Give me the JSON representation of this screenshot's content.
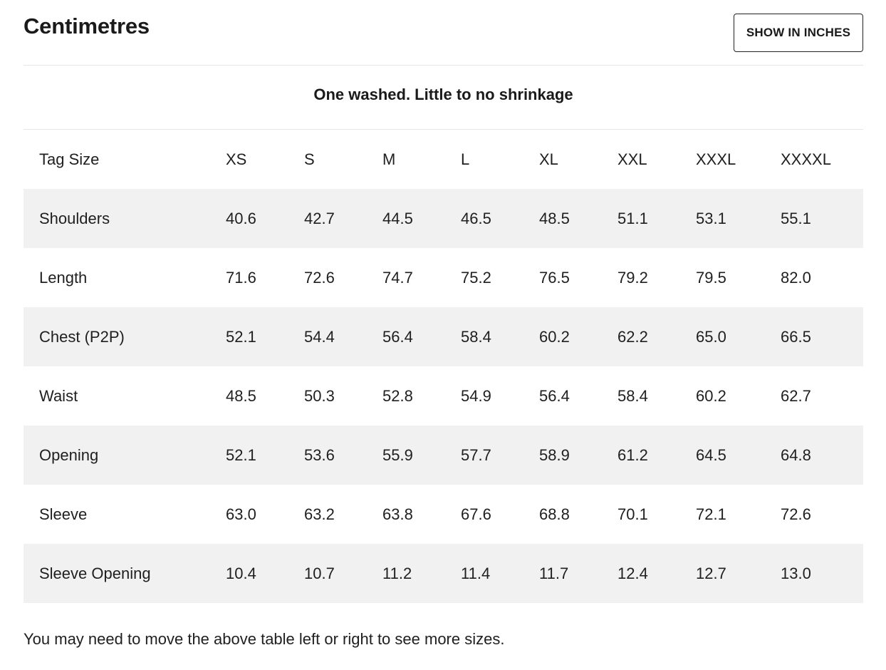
{
  "header": {
    "title": "Centimetres",
    "toggle_label": "SHOW IN INCHES"
  },
  "caption": "One washed. Little to no shrinkage",
  "table": {
    "columns": [
      "Tag Size",
      "XS",
      "S",
      "M",
      "L",
      "XL",
      "XXL",
      "XXXL",
      "XXXXL"
    ],
    "rows": [
      {
        "label": "Shoulders",
        "values": [
          "40.6",
          "42.7",
          "44.5",
          "46.5",
          "48.5",
          "51.1",
          "53.1",
          "55.1"
        ]
      },
      {
        "label": "Length",
        "values": [
          "71.6",
          "72.6",
          "74.7",
          "75.2",
          "76.5",
          "79.2",
          "79.5",
          "82.0"
        ]
      },
      {
        "label": "Chest (P2P)",
        "values": [
          "52.1",
          "54.4",
          "56.4",
          "58.4",
          "60.2",
          "62.2",
          "65.0",
          "66.5"
        ]
      },
      {
        "label": "Waist",
        "values": [
          "48.5",
          "50.3",
          "52.8",
          "54.9",
          "56.4",
          "58.4",
          "60.2",
          "62.7"
        ]
      },
      {
        "label": "Opening",
        "values": [
          "52.1",
          "53.6",
          "55.9",
          "57.7",
          "58.9",
          "61.2",
          "64.5",
          "64.8"
        ]
      },
      {
        "label": "Sleeve",
        "values": [
          "63.0",
          "63.2",
          "63.8",
          "67.6",
          "68.8",
          "70.1",
          "72.1",
          "72.6"
        ]
      },
      {
        "label": "Sleeve Opening",
        "values": [
          "10.4",
          "10.7",
          "11.2",
          "11.4",
          "11.7",
          "12.4",
          "12.7",
          "13.0"
        ]
      }
    ]
  },
  "footnote": "You may need to move the above table left or right to see more sizes.",
  "colors": {
    "shaded_row": "#f1f1f1",
    "text": "#1f1f1f",
    "divider": "#e6e6e6"
  }
}
